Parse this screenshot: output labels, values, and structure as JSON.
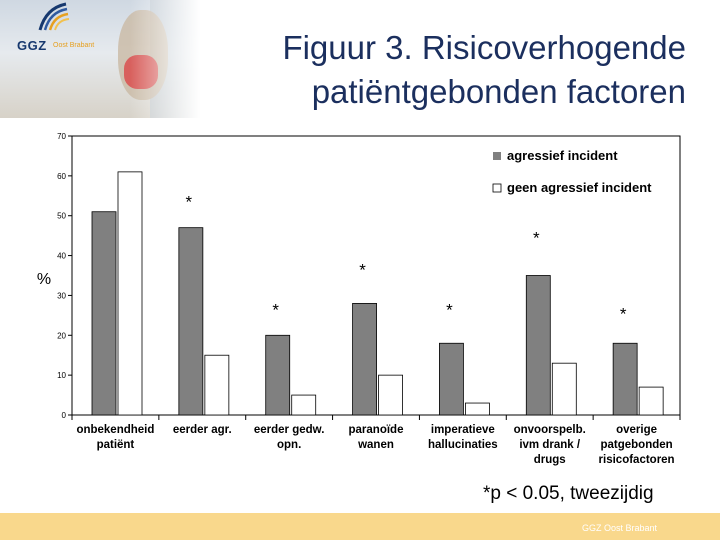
{
  "header": {
    "logo_text": "GGZ",
    "logo_subtext": "Oost Brabant",
    "title_line1": "Figuur 3. Risicoverhogende",
    "title_line2": "patiëntgebonden factoren"
  },
  "footnote": "*p < 0.05, tweezijdig",
  "footer": {
    "text": "GGZ Oost Brabant"
  },
  "colors": {
    "title": "#1b2f5e",
    "footer_bar": "#f9d88c",
    "series_1": "#808080",
    "series_2": "#ffffff"
  },
  "chart_data": {
    "type": "bar",
    "ylabel": "%",
    "ylim": [
      0,
      70
    ],
    "yticks": [
      0,
      10,
      20,
      30,
      40,
      50,
      60,
      70
    ],
    "legend_position": "top-right",
    "grid": false,
    "categories": [
      [
        "onbekendheid",
        "patiënt"
      ],
      [
        "eerder agr."
      ],
      [
        "eerder gedw.",
        "opn."
      ],
      [
        "paranoïde",
        "wanen"
      ],
      [
        "imperatieve",
        "hallucinaties"
      ],
      [
        "onvoorspelb.",
        "ivm drank /",
        "drugs"
      ],
      [
        "overige",
        "patgebonden",
        "risicofactoren"
      ]
    ],
    "series": [
      {
        "name": "agressief incident",
        "values": [
          51,
          47,
          20,
          28,
          18,
          35,
          18
        ]
      },
      {
        "name": "geen agressief incident",
        "values": [
          61,
          15,
          5,
          10,
          3,
          13,
          7
        ]
      }
    ],
    "annotations": [
      {
        "text": "*",
        "category_index": 1,
        "y": 52
      },
      {
        "text": "*",
        "category_index": 2,
        "y": 25
      },
      {
        "text": "*",
        "category_index": 3,
        "y": 35
      },
      {
        "text": "*",
        "category_index": 4,
        "y": 25
      },
      {
        "text": "*",
        "category_index": 5,
        "y": 43
      },
      {
        "text": "*",
        "category_index": 6,
        "y": 24
      }
    ]
  }
}
